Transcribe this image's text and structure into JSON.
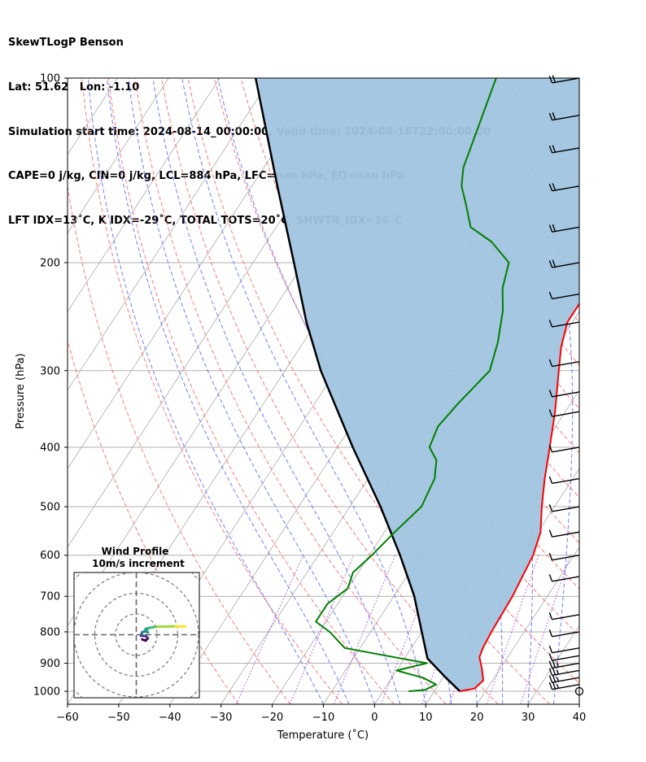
{
  "header": {
    "line1": "SkewTLogP Benson",
    "line2": "Lat: 51.62   Lon: -1.10",
    "line3": "Simulation start time: 2024-08-14_00:00:00, Valid time: 2024-08-16T22:00:00.00",
    "line4": "CAPE=0 j/kg, CIN=0 j/kg, LCL=884 hPa, LFC=nan hPa, EQ=nan hPa",
    "line5": "LFT IDX=13˚C, K IDX=-29˚C, TOTAL TOTS=20˚C, SHWTR_IDX=16˚C"
  },
  "chart_data": {
    "type": "skewt",
    "xlabel": "Temperature (˚C)",
    "ylabel": "Pressure (hPa)",
    "xlim": [
      -60,
      40
    ],
    "ylim": [
      1050,
      100
    ],
    "x_ticks": [
      "−60",
      "−50",
      "−40",
      "−30",
      "−20",
      "−10",
      "0",
      "10",
      "20",
      "30",
      "40"
    ],
    "y_ticks": [
      "100",
      "200",
      "300",
      "400",
      "500",
      "600",
      "700",
      "800",
      "900",
      "1000"
    ],
    "grid": true,
    "colors": {
      "temperature": "#ff0000",
      "dewpoint": "#008000",
      "parcel": "#000000",
      "shade": "#a0c4e0",
      "dry_adiabat": "#ff6060",
      "moist_adiabat": "#4a5cff",
      "mixing_ratio": "#9b30d0",
      "isotherm": "#aaaaaa"
    },
    "temperature": [
      {
        "p": 1000,
        "t": 15
      },
      {
        "p": 990,
        "t": 17.5
      },
      {
        "p": 960,
        "t": 18.2
      },
      {
        "p": 920,
        "t": 16.5
      },
      {
        "p": 880,
        "t": 14.5
      },
      {
        "p": 850,
        "t": 14
      },
      {
        "p": 800,
        "t": 13.6
      },
      {
        "p": 700,
        "t": 13.2
      },
      {
        "p": 600,
        "t": 12
      },
      {
        "p": 550,
        "t": 10.5
      },
      {
        "p": 500,
        "t": 7.5
      },
      {
        "p": 450,
        "t": 4.5
      },
      {
        "p": 400,
        "t": 1.5
      },
      {
        "p": 350,
        "t": -2
      },
      {
        "p": 300,
        "t": -6.5
      },
      {
        "p": 275,
        "t": -9
      },
      {
        "p": 250,
        "t": -11
      },
      {
        "p": 220,
        "t": -11
      },
      {
        "p": 200,
        "t": -9
      },
      {
        "p": 175,
        "t": -5
      },
      {
        "p": 150,
        "t": -3.5
      },
      {
        "p": 130,
        "t": -3
      },
      {
        "p": 115,
        "t": -1.5
      },
      {
        "p": 100,
        "t": 0
      }
    ],
    "dewpoint": [
      {
        "p": 1000,
        "t": 5
      },
      {
        "p": 995,
        "t": 8
      },
      {
        "p": 975,
        "t": 9.5
      },
      {
        "p": 950,
        "t": 6
      },
      {
        "p": 925,
        "t": 0
      },
      {
        "p": 900,
        "t": 5
      },
      {
        "p": 850,
        "t": -13
      },
      {
        "p": 800,
        "t": -18
      },
      {
        "p": 770,
        "t": -22
      },
      {
        "p": 720,
        "t": -22
      },
      {
        "p": 680,
        "t": -20
      },
      {
        "p": 640,
        "t": -21
      },
      {
        "p": 600,
        "t": -19.5
      },
      {
        "p": 550,
        "t": -18
      },
      {
        "p": 500,
        "t": -16
      },
      {
        "p": 450,
        "t": -17
      },
      {
        "p": 420,
        "t": -19
      },
      {
        "p": 400,
        "t": -22
      },
      {
        "p": 370,
        "t": -23
      },
      {
        "p": 340,
        "t": -22
      },
      {
        "p": 300,
        "t": -20
      },
      {
        "p": 270,
        "t": -22
      },
      {
        "p": 240,
        "t": -25
      },
      {
        "p": 220,
        "t": -28
      },
      {
        "p": 200,
        "t": -30
      },
      {
        "p": 185,
        "t": -36
      },
      {
        "p": 175,
        "t": -42
      },
      {
        "p": 160,
        "t": -46
      },
      {
        "p": 150,
        "t": -49
      },
      {
        "p": 140,
        "t": -51
      },
      {
        "p": 100,
        "t": -56
      }
    ],
    "parcel": [
      {
        "p": 1000,
        "t": 15
      },
      {
        "p": 950,
        "t": 10.5
      },
      {
        "p": 900,
        "t": 6
      },
      {
        "p": 884,
        "t": 4.5
      },
      {
        "p": 800,
        "t": 0
      },
      {
        "p": 700,
        "t": -6
      },
      {
        "p": 600,
        "t": -14
      },
      {
        "p": 500,
        "t": -24
      },
      {
        "p": 400,
        "t": -37
      },
      {
        "p": 300,
        "t": -53
      },
      {
        "p": 250,
        "t": -62
      },
      {
        "p": 200,
        "t": -72
      },
      {
        "p": 150,
        "t": -85
      },
      {
        "p": 100,
        "t": -103
      }
    ],
    "wind_barbs": [
      {
        "p": 1000,
        "speed_kt": 0
      },
      {
        "p": 975,
        "speed_kt": 15
      },
      {
        "p": 950,
        "speed_kt": 15
      },
      {
        "p": 925,
        "speed_kt": 15
      },
      {
        "p": 900,
        "speed_kt": 15
      },
      {
        "p": 875,
        "speed_kt": 10
      },
      {
        "p": 850,
        "speed_kt": 10
      },
      {
        "p": 800,
        "speed_kt": 10
      },
      {
        "p": 750,
        "speed_kt": 10
      },
      {
        "p": 650,
        "speed_kt": 10
      },
      {
        "p": 600,
        "speed_kt": 10
      },
      {
        "p": 550,
        "speed_kt": 10
      },
      {
        "p": 500,
        "speed_kt": 10
      },
      {
        "p": 450,
        "speed_kt": 10
      },
      {
        "p": 400,
        "speed_kt": 10
      },
      {
        "p": 350,
        "speed_kt": 10
      },
      {
        "p": 325,
        "speed_kt": 10
      },
      {
        "p": 290,
        "speed_kt": 10
      },
      {
        "p": 250,
        "speed_kt": 10
      },
      {
        "p": 225,
        "speed_kt": 10
      },
      {
        "p": 200,
        "speed_kt": 20
      },
      {
        "p": 175,
        "speed_kt": 20
      },
      {
        "p": 150,
        "speed_kt": 20
      },
      {
        "p": 130,
        "speed_kt": 20
      },
      {
        "p": 115,
        "speed_kt": 20
      },
      {
        "p": 100,
        "speed_kt": 20
      }
    ],
    "hodograph": {
      "title_line1": "Wind Profile",
      "title_line2": "10m/s increment",
      "points": [
        {
          "u": 2.5,
          "v": -2
        },
        {
          "u": 4,
          "v": -2.5
        },
        {
          "u": 5,
          "v": -1.5
        },
        {
          "u": 4,
          "v": -0.5
        },
        {
          "u": 2,
          "v": -0.5
        },
        {
          "u": 2.5,
          "v": 1
        },
        {
          "u": 3.5,
          "v": 1.5
        },
        {
          "u": 5,
          "v": 1
        },
        {
          "u": 4,
          "v": 2.5
        },
        {
          "u": 6,
          "v": 3
        },
        {
          "u": 9,
          "v": 3.5
        },
        {
          "u": 13,
          "v": 3.5
        },
        {
          "u": 17,
          "v": 3.6
        },
        {
          "u": 21,
          "v": 3.5
        }
      ]
    }
  }
}
